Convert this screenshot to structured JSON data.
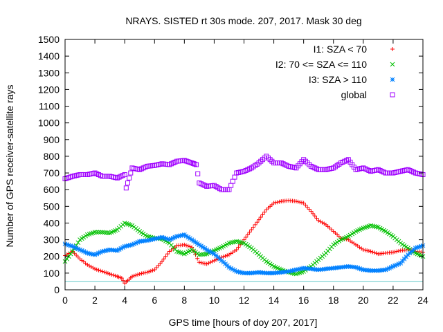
{
  "chart_data": {
    "type": "scatter",
    "title": "NRAYS. SISTED rt 30s mode. 207, 2017. Mask 30 deg",
    "xlabel": "GPS time [hours of doy 207, 2017]",
    "ylabel": "Number of GPS receiver-satellite rays",
    "xlim": [
      0,
      24
    ],
    "ylim": [
      0,
      1500
    ],
    "xticks": [
      "0",
      "2",
      "4",
      "6",
      "8",
      "10",
      "12",
      "14",
      "16",
      "18",
      "20",
      "22",
      "24"
    ],
    "yticks": [
      "0",
      "100",
      "200",
      "300",
      "400",
      "500",
      "600",
      "700",
      "800",
      "900",
      "1000",
      "1100",
      "1200",
      "1300",
      "1400",
      "1500"
    ],
    "reference_line": {
      "y": 50,
      "color": "#5fc6c6"
    },
    "series": [
      {
        "name": "I1: SZA < 70",
        "marker": "+",
        "color": "#ff0000",
        "x": [
          0,
          0.5,
          1,
          1.5,
          2,
          2.5,
          3,
          3.5,
          3.8,
          4,
          4.2,
          4.5,
          5,
          5.5,
          6,
          6.5,
          7,
          7.5,
          8,
          8.5,
          9,
          9.5,
          10,
          10.5,
          11,
          11.5,
          12,
          12.5,
          13,
          13.5,
          14,
          14.5,
          15,
          15.5,
          16,
          16.5,
          17,
          17.5,
          18,
          18.5,
          19,
          19.5,
          20,
          20.5,
          21,
          21.5,
          22,
          22.5,
          23,
          23.5,
          24
        ],
        "y": [
          205,
          230,
          185,
          150,
          125,
          110,
          95,
          80,
          70,
          40,
          55,
          80,
          95,
          105,
          120,
          170,
          230,
          265,
          270,
          255,
          165,
          155,
          175,
          195,
          210,
          240,
          300,
          360,
          420,
          480,
          520,
          530,
          535,
          530,
          520,
          470,
          415,
          390,
          350,
          310,
          300,
          270,
          240,
          230,
          215,
          220,
          225,
          235,
          240,
          230,
          225
        ]
      },
      {
        "name": "I2: 70 <= SZA <= 110",
        "marker": "x",
        "color": "#00c000",
        "x": [
          0,
          0.5,
          1,
          1.5,
          2,
          2.5,
          3,
          3.5,
          4,
          4.5,
          5,
          5.5,
          6,
          6.5,
          7,
          7.5,
          8,
          8.5,
          9,
          9.5,
          10,
          10.5,
          11,
          11.5,
          12,
          12.5,
          13,
          13.5,
          14,
          14.5,
          15,
          15.5,
          16,
          16.5,
          17,
          17.5,
          18,
          18.5,
          19,
          19.5,
          20,
          20.5,
          21,
          21.5,
          22,
          22.5,
          23,
          23.5,
          24
        ],
        "y": [
          170,
          230,
          300,
          330,
          345,
          345,
          340,
          360,
          400,
          385,
          350,
          320,
          310,
          305,
          280,
          230,
          215,
          240,
          210,
          215,
          235,
          255,
          280,
          290,
          280,
          250,
          210,
          170,
          140,
          120,
          105,
          95,
          110,
          140,
          180,
          220,
          270,
          300,
          320,
          350,
          370,
          385,
          375,
          350,
          320,
          280,
          250,
          220,
          200
        ]
      },
      {
        "name": "I3: SZA > 110",
        "marker": "*",
        "color": "#0080ff",
        "x": [
          0,
          0.5,
          1,
          1.5,
          2,
          2.5,
          3,
          3.5,
          4,
          4.5,
          5,
          5.5,
          6,
          6.5,
          7,
          7.5,
          8,
          8.5,
          9,
          9.5,
          10,
          10.5,
          11,
          11.5,
          12,
          12.5,
          13,
          13.5,
          14,
          14.5,
          15,
          15.5,
          16,
          16.5,
          17,
          17.5,
          18,
          18.5,
          19,
          19.5,
          20,
          20.5,
          21,
          21.5,
          22,
          22.5,
          23,
          23.5,
          24
        ],
        "y": [
          275,
          260,
          240,
          220,
          210,
          230,
          240,
          235,
          260,
          270,
          290,
          295,
          305,
          315,
          300,
          320,
          330,
          300,
          270,
          240,
          215,
          175,
          135,
          110,
          100,
          100,
          105,
          100,
          100,
          105,
          110,
          120,
          130,
          125,
          120,
          125,
          130,
          135,
          140,
          135,
          120,
          115,
          115,
          120,
          140,
          160,
          210,
          250,
          265
        ]
      },
      {
        "name": "global",
        "marker": "square",
        "color": "#a000ff",
        "x": [
          0,
          0.5,
          1,
          1.5,
          2,
          2.5,
          3,
          3.5,
          4,
          4.1,
          4.5,
          5,
          5.5,
          6,
          6.5,
          7,
          7.5,
          8,
          8.5,
          8.8,
          9,
          9.5,
          10,
          10.5,
          11,
          11.5,
          12,
          12.5,
          13,
          13.5,
          14,
          14.5,
          15,
          15.5,
          16,
          16.5,
          17,
          17.5,
          18,
          18.5,
          19,
          19.5,
          20,
          20.5,
          21,
          21.5,
          22,
          22.5,
          23,
          23.5,
          24
        ],
        "y": [
          665,
          680,
          690,
          690,
          700,
          680,
          680,
          670,
          690,
          610,
          730,
          720,
          740,
          745,
          755,
          750,
          770,
          775,
          760,
          750,
          640,
          620,
          625,
          600,
          600,
          700,
          710,
          730,
          760,
          800,
          760,
          760,
          740,
          730,
          780,
          740,
          720,
          720,
          730,
          760,
          780,
          720,
          730,
          710,
          720,
          700,
          700,
          710,
          720,
          700,
          690
        ]
      }
    ]
  }
}
